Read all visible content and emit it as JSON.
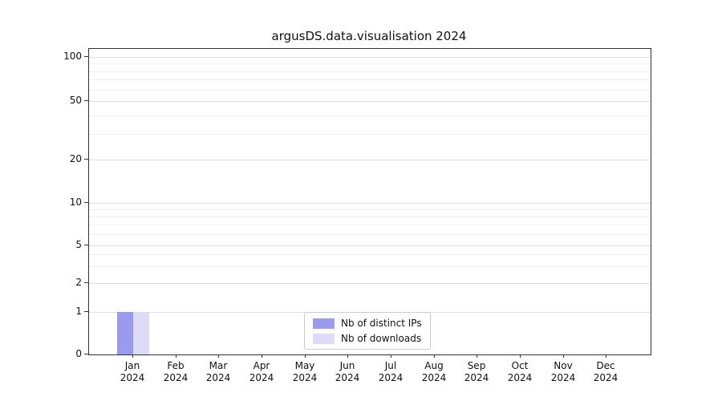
{
  "chart_data": {
    "type": "bar",
    "title": "argusDS.data.visualisation 2024",
    "categories": [
      "Jan",
      "Feb",
      "Mar",
      "Apr",
      "May",
      "Jun",
      "Jul",
      "Aug",
      "Sep",
      "Oct",
      "Nov",
      "Dec"
    ],
    "year": "2024",
    "series": [
      {
        "name": "Nb of distinct IPs",
        "color": "#9a9aee",
        "values": [
          1,
          0,
          0,
          0,
          0,
          0,
          0,
          0,
          0,
          0,
          0,
          0
        ]
      },
      {
        "name": "Nb of downloads",
        "color": "#dcdcf8",
        "values": [
          1,
          0,
          0,
          0,
          0,
          0,
          0,
          0,
          0,
          0,
          0,
          0
        ]
      }
    ],
    "yscale": "symlog",
    "y_ticks": [
      0,
      1,
      2,
      5,
      10,
      20,
      50,
      100
    ],
    "y_minor_ticks": [
      3,
      4,
      6,
      7,
      8,
      9,
      30,
      40,
      60,
      70,
      80,
      90
    ],
    "ylim": [
      0,
      120
    ],
    "grid": true,
    "legend_position": "lower center"
  }
}
